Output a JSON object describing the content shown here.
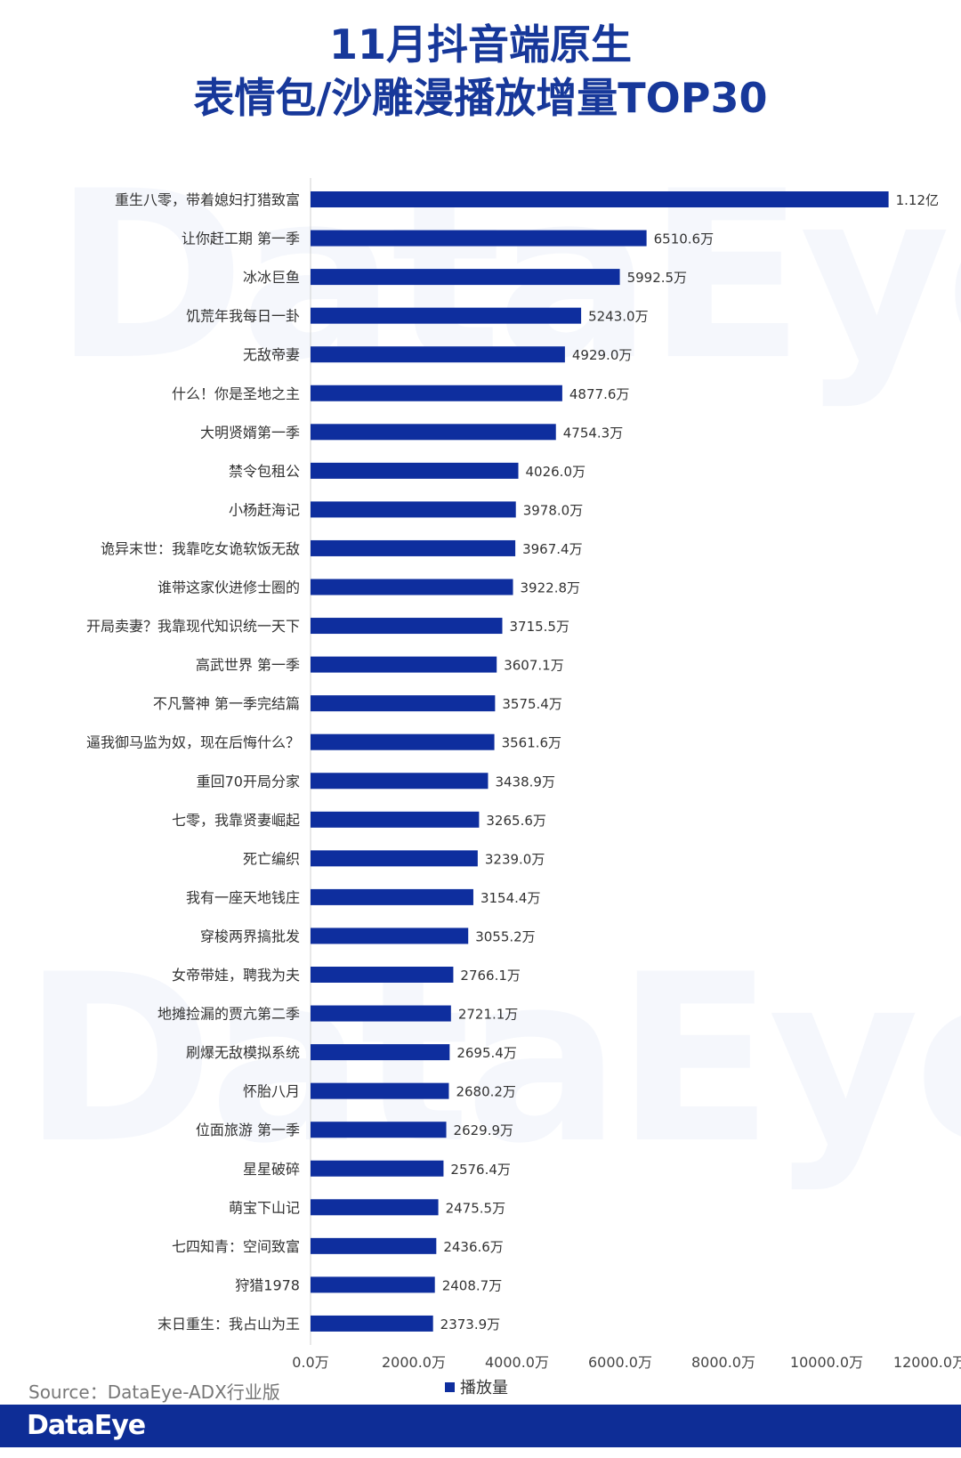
{
  "header": {
    "title_line1": "11月抖音端原生",
    "title_line2": "表情包/沙雕漫播放增量TOP30"
  },
  "watermark": {
    "text": "DataEye"
  },
  "source": {
    "text": "Source：DataEye-ADX行业版"
  },
  "footer": {
    "logo": "DataEye"
  },
  "colors": {
    "bar": "#0e2e9e",
    "title": "#17389a",
    "footer": "#0e2d96"
  },
  "chart_data": {
    "type": "bar",
    "orientation": "horizontal",
    "categories": [
      "重生八零，带着媳妇打猎致富",
      "让你赶工期 第一季",
      "冰冰巨鱼",
      "饥荒年我每日一卦",
      "无敌帝妻",
      "什么！你是圣地之主",
      "大明贤婿第一季",
      "禁令包租公",
      "小杨赶海记",
      "诡异末世：我靠吃女诡软饭无敌",
      "谁带这家伙进修士圈的",
      "开局卖妻？我靠现代知识统一天下",
      "高武世界 第一季",
      "不凡警神 第一季完结篇",
      "逼我御马监为奴，现在后悔什么？",
      "重回70开局分家",
      "七零，我靠贤妻崛起",
      "死亡编织",
      "我有一座天地钱庄",
      "穿梭两界搞批发",
      "女帝带娃，聘我为夫",
      "地摊捡漏的贾亢第二季",
      "刷爆无敌模拟系统",
      "怀胎八月",
      "位面旅游 第一季",
      "星星破碎",
      "萌宝下山记",
      "七四知青：空间致富",
      "狩猎1978",
      "末日重生：我占山为王"
    ],
    "series": [
      {
        "name": "播放量",
        "values": [
          11200,
          6510.6,
          5992.5,
          5243.0,
          4929.0,
          4877.6,
          4754.3,
          4026.0,
          3978.0,
          3967.4,
          3922.8,
          3715.5,
          3607.1,
          3575.4,
          3561.6,
          3438.9,
          3265.6,
          3239.0,
          3154.4,
          3055.2,
          2766.1,
          2721.1,
          2695.4,
          2680.2,
          2629.9,
          2576.4,
          2475.5,
          2436.6,
          2408.7,
          2373.9
        ]
      }
    ],
    "data_labels": [
      "1.12亿",
      "6510.6万",
      "5992.5万",
      "5243.0万",
      "4929.0万",
      "4877.6万",
      "4754.3万",
      "4026.0万",
      "3978.0万",
      "3967.4万",
      "3922.8万",
      "3715.5万",
      "3607.1万",
      "3575.4万",
      "3561.6万",
      "3438.9万",
      "3265.6万",
      "3239.0万",
      "3154.4万",
      "3055.2万",
      "2766.1万",
      "2721.1万",
      "2695.4万",
      "2680.2万",
      "2629.9万",
      "2576.4万",
      "2475.5万",
      "2436.6万",
      "2408.7万",
      "2373.9万"
    ],
    "x_ticks": [
      "0.0万",
      "2000.0万",
      "4000.0万",
      "6000.0万",
      "8000.0万",
      "10000.0万",
      "12000.0万"
    ],
    "xlim": [
      0,
      12000
    ],
    "legend": {
      "position": "bottom",
      "label": "播放量"
    },
    "grid": false
  }
}
